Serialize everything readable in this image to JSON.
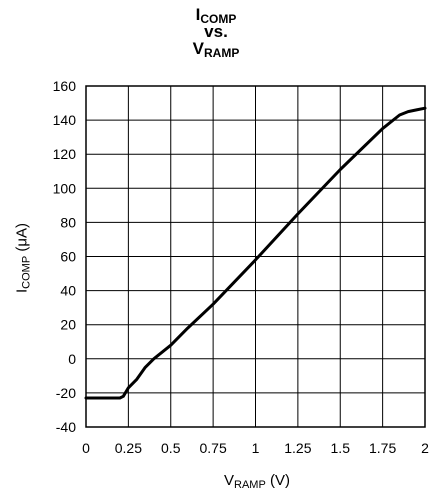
{
  "chart_data": {
    "type": "line",
    "title": {
      "line1_main": "I",
      "line1_sub": "COMP",
      "line2": "vs.",
      "line3_main": "V",
      "line3_sub": "RAMP"
    },
    "xlabel": {
      "main": "V",
      "sub": "RAMP",
      "rest": " (V)"
    },
    "ylabel": {
      "main": "I",
      "sub": "COMP",
      "rest": " (μA)"
    },
    "xlim": [
      0,
      2
    ],
    "ylim": [
      -40,
      160
    ],
    "x_ticks": [
      0,
      0.25,
      0.5,
      0.75,
      1,
      1.25,
      1.5,
      1.75,
      2
    ],
    "x_tick_labels": [
      "0",
      "0.25",
      "0.5",
      "0.75",
      "1",
      "1.25",
      "1.5",
      "1.75",
      "2"
    ],
    "y_ticks": [
      -40,
      -20,
      0,
      20,
      40,
      60,
      80,
      100,
      120,
      140,
      160
    ],
    "y_tick_labels": [
      "-40",
      "-20",
      "0",
      "20",
      "40",
      "60",
      "80",
      "100",
      "120",
      "140",
      "160"
    ],
    "grid": true,
    "line_color": "#000000",
    "series": [
      {
        "x": [
          0,
          0.1,
          0.2,
          0.22,
          0.25,
          0.3,
          0.35,
          0.4,
          0.5,
          0.6,
          0.75,
          1.0,
          1.25,
          1.5,
          1.75,
          1.85,
          1.9,
          1.95,
          2.0
        ],
        "y": [
          -23,
          -23,
          -23,
          -22,
          -17,
          -12,
          -5,
          0,
          8,
          18,
          32,
          58,
          85,
          111,
          135,
          143,
          145,
          146,
          147
        ]
      }
    ]
  }
}
